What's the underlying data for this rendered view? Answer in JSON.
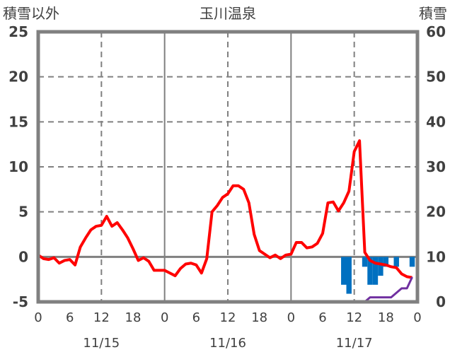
{
  "chart_data": {
    "type": "line",
    "title": "玉川温泉",
    "ylabel_left": "積雪以外",
    "ylabel_right": "積雪",
    "ylim_left": [
      -5,
      25
    ],
    "ylim_right": [
      0,
      60
    ],
    "yticks_left": [
      "25",
      "20",
      "15",
      "10",
      "5",
      "0",
      "-5"
    ],
    "yticks_right": [
      "60",
      "50",
      "40",
      "30",
      "20",
      "10",
      "0"
    ],
    "xlim_hours": [
      0,
      72
    ],
    "xtick_labels": [
      "0",
      "6",
      "12",
      "18",
      "0",
      "6",
      "12",
      "18",
      "0",
      "6",
      "12",
      "18",
      "0"
    ],
    "date_labels": [
      {
        "hour": 12,
        "label": "11/15"
      },
      {
        "hour": 36,
        "label": "11/16"
      },
      {
        "hour": 60,
        "label": "11/17"
      }
    ],
    "grid": "on",
    "series": [
      {
        "name": "temperature",
        "axis": "left",
        "color": "#ff0000",
        "type": "line",
        "values": [
          0.2,
          -0.2,
          -0.3,
          -0.1,
          -0.7,
          -0.4,
          -0.3,
          -0.9,
          1.1,
          2.1,
          3.0,
          3.4,
          3.5,
          4.5,
          3.4,
          3.8,
          3.0,
          2.1,
          0.9,
          -0.4,
          -0.1,
          -0.5,
          -1.5,
          -1.5,
          -1.5,
          -1.8,
          -2.1,
          -1.3,
          -0.8,
          -0.7,
          -0.9,
          -1.8,
          -0.2,
          5.0,
          5.7,
          6.6,
          7.0,
          7.9,
          7.9,
          7.5,
          6.0,
          2.5,
          0.7,
          0.3,
          -0.1,
          0.2,
          -0.2,
          0.2,
          0.3,
          1.6,
          1.6,
          1.0,
          1.1,
          1.5,
          2.6,
          6.0,
          6.1,
          5.1,
          6.0,
          7.3,
          11.7,
          12.9,
          0.5,
          -0.4,
          -0.7,
          -0.8,
          -0.9,
          -1.1,
          -1.2,
          -1.9,
          -2.2,
          -2.3
        ]
      },
      {
        "name": "precipitation",
        "axis": "left",
        "color": "#0070c0",
        "type": "bar",
        "values": {
          "58": -3.1,
          "59": -4.1,
          "62": -1.1,
          "63": -3.1,
          "64": -3.1,
          "65": -2.1,
          "66": -1.1,
          "68": -1.1,
          "71": -1.1
        }
      },
      {
        "name": "snow_depth",
        "axis": "right",
        "color": "#7030a0",
        "type": "line",
        "values": [
          0,
          0,
          0,
          0,
          0,
          0,
          0,
          0,
          0,
          0,
          0,
          0,
          0,
          0,
          0,
          0,
          0,
          0,
          0,
          0,
          0,
          0,
          0,
          0,
          0,
          0,
          0,
          0,
          0,
          0,
          0,
          0,
          0,
          0,
          0,
          0,
          0,
          0,
          0,
          0,
          0,
          0,
          0,
          0,
          0,
          0,
          0,
          0,
          0,
          0,
          0,
          0,
          0,
          0,
          0,
          0,
          0,
          0,
          0,
          0,
          0,
          0,
          0,
          1,
          1,
          1,
          1,
          1,
          2,
          3,
          3,
          5.5
        ]
      }
    ]
  }
}
